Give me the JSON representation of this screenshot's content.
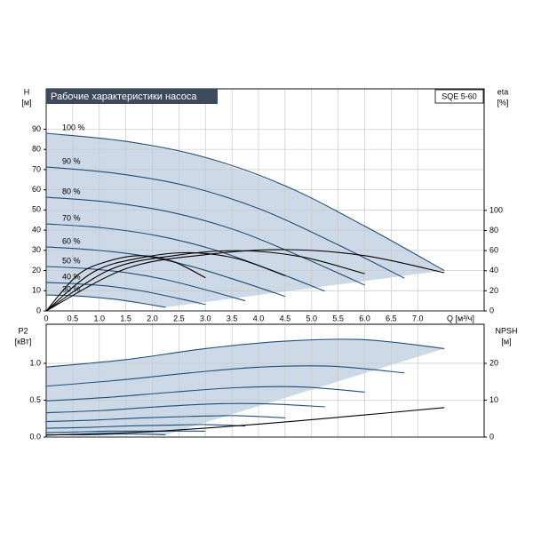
{
  "chart_data": [
    {
      "type": "line",
      "title": "Рабочие характеристики насоса",
      "model": "SQE 5-60",
      "ylabel": "H",
      "yunit": "[м]",
      "y2label": "eta",
      "y2unit": "[%]",
      "xlabel": "Q [м³/ч]",
      "xlim": [
        0,
        8.25
      ],
      "ylim": [
        0,
        110
      ],
      "y2lim": [
        0,
        221
      ],
      "xticks": [
        0,
        0.5,
        {
          "value": 1,
          "label": "1.0"
        },
        1.5,
        {
          "value": 2,
          "label": "2.0"
        },
        2.5,
        {
          "value": 3,
          "label": "3.0"
        },
        3.5,
        {
          "value": 4,
          "label": "4.0"
        },
        4.5,
        {
          "value": 5,
          "label": "5.0"
        },
        5.5,
        {
          "value": 6,
          "label": "6.0"
        },
        6.5,
        {
          "value": 7,
          "label": "7.0"
        }
      ],
      "yticks": [
        0,
        10,
        20,
        30,
        40,
        50,
        60,
        70,
        80,
        90
      ],
      "y2ticks": [
        0,
        20,
        40,
        60,
        80,
        100
      ],
      "grid": true,
      "area_color": "#cdd9e6",
      "series": [
        {
          "name": "100 %",
          "color": "#1f4e79",
          "x": [
            0,
            1.5,
            3,
            4.5,
            6,
            7.5
          ],
          "values": [
            88,
            84,
            76,
            62,
            42,
            20
          ]
        },
        {
          "name": "90 %",
          "color": "#1f4e79",
          "x": [
            0,
            1.35,
            2.7,
            4.05,
            5.4,
            6.75
          ],
          "values": [
            71.3,
            68,
            61.6,
            50.2,
            34,
            16.2
          ]
        },
        {
          "name": "80 %",
          "color": "#1f4e79",
          "x": [
            0,
            1.2,
            2.4,
            3.6,
            4.8,
            6.0
          ],
          "values": [
            56.3,
            53.8,
            48.6,
            39.7,
            26.9,
            12.8
          ]
        },
        {
          "name": "70 %",
          "color": "#1f4e79",
          "x": [
            0,
            1.05,
            2.1,
            3.15,
            4.2,
            5.25
          ],
          "values": [
            43.1,
            41.2,
            37.2,
            30.4,
            20.6,
            9.8
          ]
        },
        {
          "name": "60 %",
          "color": "#1f4e79",
          "x": [
            0,
            0.9,
            1.8,
            2.7,
            3.6,
            4.5
          ],
          "values": [
            31.7,
            30.2,
            27.4,
            22.3,
            15.1,
            7.2
          ]
        },
        {
          "name": "50 %",
          "color": "#1f4e79",
          "x": [
            0,
            0.75,
            1.5,
            2.25,
            3,
            3.75
          ],
          "values": [
            22,
            21,
            19,
            15.5,
            10.5,
            5
          ]
        },
        {
          "name": "40 %",
          "color": "#1f4e79",
          "x": [
            0,
            0.6,
            1.2,
            1.8,
            2.4,
            3.0
          ],
          "values": [
            14.1,
            13.4,
            12.2,
            9.9,
            6.7,
            3.2
          ]
        },
        {
          "name": "30 %",
          "color": "#1f4e79",
          "x": [
            0,
            0.45,
            0.9,
            1.35,
            1.8,
            2.25
          ],
          "values": [
            7.9,
            7.6,
            6.8,
            5.6,
            3.8,
            1.8
          ]
        },
        {
          "axis": "y2",
          "color": "#000000",
          "x": [
            0,
            1.5,
            3,
            4.5,
            6,
            7.5
          ],
          "values": [
            0,
            42,
            56,
            61,
            55,
            38
          ]
        },
        {
          "axis": "y2",
          "color": "#000000",
          "x": [
            0,
            1.2,
            2.4,
            3.6,
            4.8,
            6.0
          ],
          "values": [
            0,
            41,
            55,
            60,
            54,
            37
          ]
        },
        {
          "axis": "y2",
          "color": "#000000",
          "x": [
            0,
            0.9,
            1.8,
            2.7,
            3.6,
            4.5
          ],
          "values": [
            0,
            39,
            53,
            58,
            52,
            35
          ]
        },
        {
          "axis": "y2",
          "color": "#000000",
          "x": [
            0,
            0.6,
            1.2,
            1.8,
            2.4,
            3.0
          ],
          "values": [
            0,
            36,
            50,
            55,
            49,
            33
          ]
        }
      ]
    },
    {
      "type": "line",
      "ylabel": "P2",
      "yunit": "[кВт]",
      "y2label": "NPSH",
      "y2unit": "[м]",
      "xlim": [
        0,
        8.25
      ],
      "ylim": [
        0,
        1.53
      ],
      "y2lim": [
        0,
        30.6
      ],
      "yticks": [
        {
          "value": 0,
          "label": "0.0"
        },
        0.5,
        {
          "value": 1,
          "label": "1.0"
        }
      ],
      "y2ticks": [
        0,
        10,
        20
      ],
      "grid": true,
      "area_color": "#cdd9e6",
      "series": [
        {
          "color": "#1f4e79",
          "x": [
            0,
            1.5,
            3,
            4.5,
            6,
            7.5
          ],
          "values": [
            0.95,
            1.05,
            1.2,
            1.3,
            1.32,
            1.2
          ]
        },
        {
          "color": "#1f4e79",
          "x": [
            0,
            1.35,
            2.7,
            4.05,
            5.4,
            6.75
          ],
          "values": [
            0.69,
            0.77,
            0.87,
            0.95,
            0.96,
            0.87
          ]
        },
        {
          "color": "#1f4e79",
          "x": [
            0,
            1.2,
            2.4,
            3.6,
            4.8,
            6.0
          ],
          "values": [
            0.49,
            0.54,
            0.61,
            0.67,
            0.68,
            0.61
          ]
        },
        {
          "color": "#1f4e79",
          "x": [
            0,
            1.05,
            2.1,
            3.15,
            4.2,
            5.25
          ],
          "values": [
            0.33,
            0.36,
            0.41,
            0.45,
            0.45,
            0.41
          ]
        },
        {
          "color": "#1f4e79",
          "x": [
            0,
            0.9,
            1.8,
            2.7,
            3.6,
            4.5
          ],
          "values": [
            0.21,
            0.23,
            0.26,
            0.28,
            0.29,
            0.26
          ]
        },
        {
          "color": "#1f4e79",
          "x": [
            0,
            0.75,
            1.5,
            2.25,
            3,
            3.75
          ],
          "values": [
            0.12,
            0.13,
            0.15,
            0.16,
            0.17,
            0.15
          ]
        },
        {
          "color": "#1f4e79",
          "x": [
            0,
            0.6,
            1.2,
            1.8,
            2.4,
            3.0
          ],
          "values": [
            0.06,
            0.07,
            0.08,
            0.08,
            0.08,
            0.08
          ]
        },
        {
          "color": "#1f4e79",
          "x": [
            0,
            0.45,
            0.9,
            1.35,
            1.8,
            2.25
          ],
          "values": [
            0.03,
            0.03,
            0.03,
            0.04,
            0.04,
            0.03
          ]
        },
        {
          "axis": "y2",
          "color": "#000000",
          "x": [
            0,
            2,
            4,
            6,
            7.5
          ],
          "values": [
            0.5,
            1.5,
            3.5,
            6,
            8
          ]
        }
      ]
    }
  ]
}
